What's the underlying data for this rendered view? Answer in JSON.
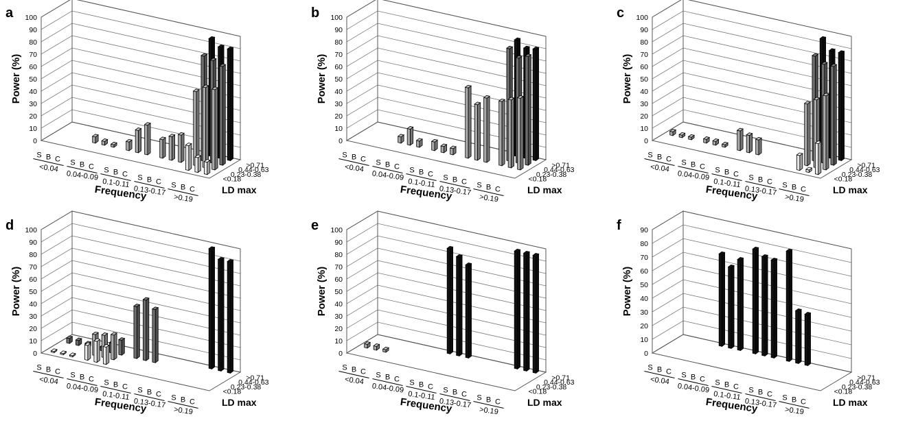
{
  "figure": {
    "frequency_label": "Frequency",
    "power_label": "Power (%)",
    "ld_label": "LD max",
    "methods": [
      "S",
      "B",
      "C"
    ],
    "frequency_bins": [
      "<0.04",
      "0.04-0.09",
      "0.1-0.11",
      "0.13-0.17",
      ">0.19"
    ],
    "ld_bins": [
      ">0.71",
      "0.44-0.63",
      "0.23-0.38",
      "<0.18"
    ],
    "ld_colors": {
      ">0.71": "#111111",
      "0.44-0.63": "#6e6e6e",
      "0.23-0.38": "#a9a9a9",
      "<0.18": "#e6e6e6"
    }
  },
  "chart_data": [
    {
      "panel": "a",
      "type": "bar",
      "ylabel": "Power (%)",
      "xlabel": "Frequency",
      "ylim": [
        0,
        100
      ],
      "yticks": [
        0,
        10,
        20,
        30,
        40,
        50,
        60,
        70,
        80,
        90,
        100
      ],
      "series": [
        {
          "ld": ">0.71",
          "values": {
            ">0.19": [
              95,
              90,
              90
            ]
          }
        },
        {
          "ld": "0.44-0.63",
          "values": {
            ">0.19": [
              85,
              83,
              80
            ]
          }
        },
        {
          "ld": "0.23-0.38",
          "values": {
            "0.04-0.09": [
              5,
              3,
              2
            ],
            "0.1-0.11": [
              7,
              18,
              24
            ],
            "0.13-0.17": [
              15,
              19,
              22
            ],
            ">0.19": [
              60,
              65,
              65
            ]
          }
        },
        {
          "ld": "<0.18",
          "values": {
            ">0.19": [
              20,
              12,
              10
            ]
          }
        }
      ]
    },
    {
      "panel": "b",
      "type": "bar",
      "ylabel": "Power (%)",
      "xlabel": "Frequency",
      "ylim": [
        0,
        100
      ],
      "yticks": [
        0,
        10,
        20,
        30,
        40,
        50,
        60,
        70,
        80,
        90,
        100
      ],
      "series": [
        {
          "ld": ">0.71",
          "values": {
            ">0.19": [
              94,
              89,
              90
            ]
          }
        },
        {
          "ld": "0.44-0.63",
          "values": {
            ">0.19": [
              91,
              85,
              88
            ]
          }
        },
        {
          "ld": "0.23-0.38",
          "values": {
            "0.04-0.09": [
              5,
              13,
              5
            ],
            "0.1-0.11": [
              7,
              5,
              5
            ],
            "0.13-0.17": [
              57,
              45,
              52
            ],
            ">0.19": [
              52,
              55,
              58
            ]
          }
        },
        {
          "ld": "<0.18",
          "values": {}
        }
      ]
    },
    {
      "panel": "c",
      "type": "bar",
      "ylabel": "Power (%)",
      "xlabel": "Frequency",
      "ylim": [
        0,
        100
      ],
      "yticks": [
        0,
        10,
        20,
        30,
        40,
        50,
        60,
        70,
        80,
        90,
        100
      ],
      "series": [
        {
          "ld": ">0.71",
          "values": {
            ">0.19": [
              95,
              87,
              87
            ]
          }
        },
        {
          "ld": "0.44-0.63",
          "values": {
            ">0.19": [
              85,
              80,
              80
            ]
          }
        },
        {
          "ld": "0.23-0.38",
          "values": {
            "<0.04": [
              3,
              2,
              2
            ],
            "0.04-0.09": [
              3,
              3,
              2
            ],
            "0.1-0.11": [
              16,
              14,
              12
            ],
            ">0.19": [
              50,
              55,
              60
            ]
          }
        },
        {
          "ld": "<0.18",
          "values": {
            ">0.19": [
              12,
              2,
              25
            ]
          }
        }
      ]
    },
    {
      "panel": "d",
      "type": "bar",
      "ylabel": "Power (%)",
      "xlabel": "Frequency",
      "ylim": [
        0,
        100
      ],
      "yticks": [
        0,
        10,
        20,
        30,
        40,
        50,
        60,
        70,
        80,
        90,
        100
      ],
      "series": [
        {
          "ld": ">0.71",
          "values": {
            ">0.19": [
              97,
              90,
              90
            ]
          }
        },
        {
          "ld": "0.44-0.63",
          "values": {
            "<0.04": [
              4,
              4,
              3
            ],
            "0.04-0.09": [
              3,
              8,
              12
            ],
            "0.1-0.11": [
              42,
              49,
              43
            ]
          }
        },
        {
          "ld": "0.23-0.38",
          "values": {
            "0.04-0.09": [
              17,
              18,
              20
            ]
          }
        },
        {
          "ld": "<0.18",
          "values": {
            "<0.04": [
              1,
              1,
              1
            ],
            "0.04-0.09": [
              12,
              17,
              14
            ]
          }
        }
      ]
    },
    {
      "panel": "e",
      "type": "bar",
      "ylabel": "Power (%)",
      "xlabel": "Frequency",
      "ylim": [
        0,
        100
      ],
      "yticks": [
        0,
        10,
        20,
        30,
        40,
        50,
        60,
        70,
        80,
        90,
        100
      ],
      "series": [
        {
          "ld": ">0.71",
          "values": {
            "0.1-0.11": [
              85,
              80,
              75
            ],
            ">0.19": [
              95,
              95,
              95
            ]
          }
        },
        {
          "ld": "0.23-0.38",
          "values": {
            "<0.04": [
              3,
              3,
              2
            ]
          }
        }
      ]
    },
    {
      "panel": "f",
      "type": "bar",
      "ylabel": "Power (%)",
      "xlabel": "Frequency",
      "ylim": [
        0,
        90
      ],
      "yticks": [
        0,
        10,
        20,
        30,
        40,
        50,
        60,
        70,
        80,
        90
      ],
      "series": [
        {
          "ld": ">0.71",
          "values": {
            "0.04-0.09": [
              67,
              59,
              66
            ],
            "0.1-0.11": [
              76,
              72,
              71
            ],
            "0.13-0.17": [
              80,
              38,
              37
            ]
          }
        }
      ]
    }
  ]
}
